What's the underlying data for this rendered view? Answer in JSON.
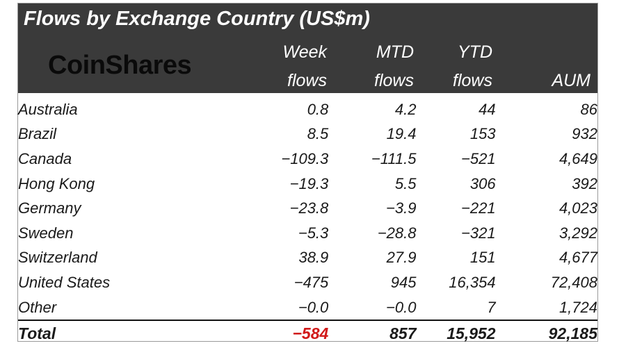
{
  "title": "Flows by Exchange Country (US$m)",
  "brand": "CoinShares",
  "colors": {
    "header_bg": "#3a3a3a",
    "negative": "#d11a1a",
    "text": "#1a1a1a"
  },
  "headers": {
    "week": [
      "Week",
      "flows"
    ],
    "mtd": [
      "MTD",
      "flows"
    ],
    "ytd": [
      "YTD",
      "flows"
    ],
    "aum": "AUM"
  },
  "chart_data": {
    "type": "table",
    "title": "Flows by Exchange Country (US$m)",
    "columns": [
      "Week flows",
      "MTD flows",
      "YTD flows",
      "AUM"
    ],
    "rows": [
      {
        "name": "Australia",
        "cells": [
          "0.8",
          "4.2",
          "44",
          "86"
        ]
      },
      {
        "name": "Brazil",
        "cells": [
          "8.5",
          "19.4",
          "153",
          "932"
        ]
      },
      {
        "name": "Canada",
        "cells": [
          "-109.3",
          "-111.5",
          "-521",
          "4,649"
        ]
      },
      {
        "name": "Hong Kong",
        "cells": [
          "-19.3",
          "5.5",
          "306",
          "392"
        ]
      },
      {
        "name": "Germany",
        "cells": [
          "-23.8",
          "-3.9",
          "-221",
          "4,023"
        ]
      },
      {
        "name": "Sweden",
        "cells": [
          "-5.3",
          "-28.8",
          "-321",
          "3,292"
        ]
      },
      {
        "name": "Switzerland",
        "cells": [
          "38.9",
          "27.9",
          "151",
          "4,677"
        ]
      },
      {
        "name": "United States",
        "cells": [
          "-475",
          "945",
          "16,354",
          "72,408"
        ]
      },
      {
        "name": "Other",
        "cells": [
          "-0.0",
          "-0.0",
          "7",
          "1,724"
        ]
      }
    ],
    "total": {
      "name": "Total",
      "cells": [
        "-584",
        "857",
        "15,952",
        "92,185"
      ]
    }
  }
}
